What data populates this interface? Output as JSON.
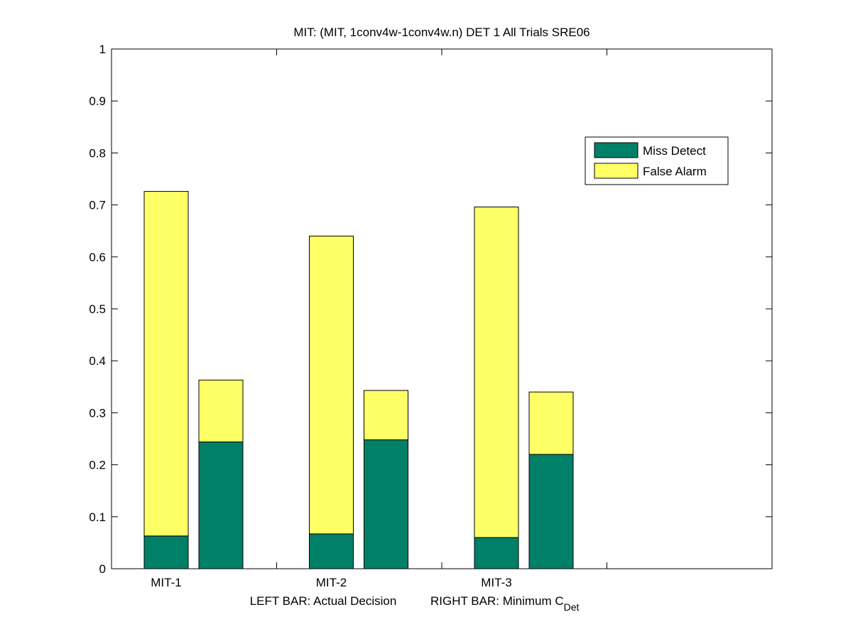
{
  "chart_data": {
    "type": "bar",
    "stacked": true,
    "title": "MIT: (MIT, 1conv4w-1conv4w.n) DET 1 All Trials SRE06",
    "xlabel_left": "LEFT BAR: Actual Decision",
    "xlabel_right_prefix": "RIGHT BAR: Minimum C",
    "xlabel_right_subscript": "Det",
    "ylim": [
      0,
      1
    ],
    "yticks": [
      "0",
      "0.1",
      "0.2",
      "0.3",
      "0.4",
      "0.5",
      "0.6",
      "0.7",
      "0.8",
      "0.9",
      "1"
    ],
    "categories": [
      "MIT-1",
      "MIT-2",
      "MIT-3"
    ],
    "grid": false,
    "legend_position": "top-right",
    "series": [
      {
        "name": "Miss Detect",
        "color": "#008066",
        "actual": [
          0.063,
          0.067,
          0.06
        ],
        "minimum": [
          0.244,
          0.248,
          0.22
        ]
      },
      {
        "name": "False Alarm",
        "color": "#ffff66",
        "actual": [
          0.663,
          0.573,
          0.636
        ],
        "minimum": [
          0.119,
          0.095,
          0.12
        ]
      }
    ]
  }
}
